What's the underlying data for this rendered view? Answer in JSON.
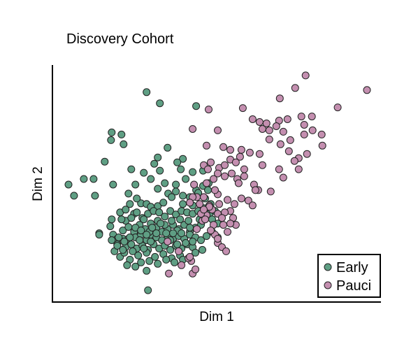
{
  "chart_data": {
    "type": "scatter",
    "title": "Discovery Cohort",
    "xlabel": "Dim 1",
    "ylabel": "Dim 2",
    "xlim": [
      0,
      470
    ],
    "ylim": [
      0,
      340
    ],
    "grid": false,
    "ticks_shown": false,
    "legend_placement": "bottom-right",
    "series": [
      {
        "name": "Early",
        "color": "#5f9f84",
        "points": [
          [
            134,
            301
          ],
          [
            153,
            285
          ],
          [
            205,
            281
          ],
          [
            84,
            243
          ],
          [
            98,
            240
          ],
          [
            83,
            232
          ],
          [
            101,
            226
          ],
          [
            74,
            201
          ],
          [
            112,
            190
          ],
          [
            145,
            198
          ],
          [
            164,
            221
          ],
          [
            186,
            205
          ],
          [
            150,
            207
          ],
          [
            178,
            200
          ],
          [
            183,
            190
          ],
          [
            200,
            186
          ],
          [
            215,
            188
          ],
          [
            153,
            188
          ],
          [
            130,
            185
          ],
          [
            22,
            168
          ],
          [
            30,
            152
          ],
          [
            44,
            176
          ],
          [
            58,
            176
          ],
          [
            60,
            152
          ],
          [
            86,
            168
          ],
          [
            118,
            168
          ],
          [
            140,
            176
          ],
          [
            160,
            170
          ],
          [
            176,
            168
          ],
          [
            190,
            176
          ],
          [
            205,
            160
          ],
          [
            215,
            166
          ],
          [
            223,
            170
          ],
          [
            108,
            155
          ],
          [
            110,
            140
          ],
          [
            116,
            126
          ],
          [
            126,
            141
          ],
          [
            134,
            140
          ],
          [
            140,
            136
          ],
          [
            150,
            137
          ],
          [
            158,
            142
          ],
          [
            165,
            155
          ],
          [
            176,
            158
          ],
          [
            186,
            152
          ],
          [
            196,
            150
          ],
          [
            208,
            156
          ],
          [
            222,
            160
          ],
          [
            96,
            128
          ],
          [
            104,
            116
          ],
          [
            112,
            120
          ],
          [
            120,
            128
          ],
          [
            128,
            120
          ],
          [
            136,
            126
          ],
          [
            144,
            130
          ],
          [
            152,
            128
          ],
          [
            160,
            122
          ],
          [
            168,
            130
          ],
          [
            176,
            125
          ],
          [
            184,
            130
          ],
          [
            192,
            128
          ],
          [
            200,
            126
          ],
          [
            208,
            130
          ],
          [
            216,
            134
          ],
          [
            224,
            126
          ],
          [
            232,
            130
          ],
          [
            100,
            102
          ],
          [
            108,
            107
          ],
          [
            116,
            100
          ],
          [
            124,
            110
          ],
          [
            132,
            104
          ],
          [
            140,
            112
          ],
          [
            148,
            106
          ],
          [
            156,
            100
          ],
          [
            164,
            104
          ],
          [
            172,
            110
          ],
          [
            180,
            104
          ],
          [
            188,
            110
          ],
          [
            196,
            100
          ],
          [
            204,
            106
          ],
          [
            212,
            110
          ],
          [
            66,
            98
          ],
          [
            82,
            108
          ],
          [
            86,
            96
          ],
          [
            92,
            90
          ],
          [
            100,
            90
          ],
          [
            108,
            90
          ],
          [
            118,
            92
          ],
          [
            126,
            96
          ],
          [
            134,
            88
          ],
          [
            140,
            96
          ],
          [
            148,
            92
          ],
          [
            156,
            88
          ],
          [
            164,
            94
          ],
          [
            172,
            90
          ],
          [
            180,
            94
          ],
          [
            188,
            90
          ],
          [
            196,
            96
          ],
          [
            204,
            92
          ],
          [
            212,
            88
          ],
          [
            220,
            94
          ],
          [
            228,
            100
          ],
          [
            236,
            92
          ],
          [
            104,
            78
          ],
          [
            112,
            82
          ],
          [
            120,
            76
          ],
          [
            128,
            80
          ],
          [
            136,
            74
          ],
          [
            144,
            82
          ],
          [
            152,
            76
          ],
          [
            160,
            80
          ],
          [
            168,
            74
          ],
          [
            176,
            80
          ],
          [
            184,
            76
          ],
          [
            192,
            82
          ],
          [
            200,
            78
          ],
          [
            66,
            96
          ],
          [
            84,
            88
          ],
          [
            92,
            82
          ],
          [
            122,
            66
          ],
          [
            134,
            70
          ],
          [
            146,
            64
          ],
          [
            158,
            68
          ],
          [
            170,
            62
          ],
          [
            182,
            66
          ],
          [
            194,
            62
          ],
          [
            204,
            70
          ],
          [
            214,
            74
          ],
          [
            110,
            60
          ],
          [
            96,
            64
          ],
          [
            88,
            72
          ],
          [
            102,
            70
          ],
          [
            114,
            72
          ],
          [
            126,
            56
          ],
          [
            138,
            58
          ],
          [
            150,
            54
          ],
          [
            162,
            60
          ],
          [
            174,
            56
          ],
          [
            186,
            60
          ],
          [
            106,
            52
          ],
          [
            118,
            50
          ],
          [
            134,
            44
          ],
          [
            94,
            92
          ],
          [
            102,
            86
          ],
          [
            150,
            116
          ],
          [
            160,
            110
          ],
          [
            170,
            116
          ],
          [
            178,
            102
          ],
          [
            190,
            84
          ],
          [
            200,
            86
          ],
          [
            138,
            100
          ],
          [
            148,
            98
          ],
          [
            118,
            106
          ],
          [
            126,
            102
          ],
          [
            134,
            96
          ],
          [
            142,
            106
          ],
          [
            154,
            112
          ],
          [
            162,
            98
          ],
          [
            172,
            98
          ],
          [
            182,
            118
          ],
          [
            194,
            116
          ],
          [
            210,
            118
          ],
          [
            218,
            122
          ],
          [
            228,
            118
          ],
          [
            236,
            112
          ],
          [
            178,
            82
          ],
          [
            130,
            118
          ],
          [
            140,
            86
          ],
          [
            98,
            118
          ],
          [
            136,
            16
          ],
          [
            92,
            80
          ],
          [
            84,
            118
          ],
          [
            104,
            132
          ],
          [
            120,
            148
          ],
          [
            150,
            162
          ],
          [
            170,
            150
          ],
          [
            200,
            138
          ],
          [
            218,
            148
          ],
          [
            226,
            140
          ],
          [
            186,
            140
          ],
          [
            196,
            106
          ],
          [
            100,
            74
          ],
          [
            110,
            92
          ],
          [
            124,
            88
          ],
          [
            168,
            88
          ],
          [
            184,
            98
          ],
          [
            130,
            76
          ]
        ]
      },
      {
        "name": "Pauci",
        "color": "#c48fb0",
        "points": [
          [
            362,
            325
          ],
          [
            347,
            307
          ],
          [
            450,
            304
          ],
          [
            325,
            292
          ],
          [
            408,
            279
          ],
          [
            272,
            278
          ],
          [
            223,
            276
          ],
          [
            200,
            248
          ],
          [
            286,
            262
          ],
          [
            296,
            258
          ],
          [
            306,
            256
          ],
          [
            324,
            260
          ],
          [
            336,
            262
          ],
          [
            356,
            266
          ],
          [
            371,
            266
          ],
          [
            300,
            248
          ],
          [
            310,
            246
          ],
          [
            320,
            252
          ],
          [
            360,
            254
          ],
          [
            372,
            246
          ],
          [
            236,
            246
          ],
          [
            330,
            244
          ],
          [
            385,
            240
          ],
          [
            310,
            233
          ],
          [
            326,
            226
          ],
          [
            340,
            232
          ],
          [
            360,
            240
          ],
          [
            386,
            224
          ],
          [
            220,
            224
          ],
          [
            244,
            222
          ],
          [
            254,
            218
          ],
          [
            270,
            218
          ],
          [
            296,
            212
          ],
          [
            338,
            216
          ],
          [
            352,
            206
          ],
          [
            364,
            212
          ],
          [
            216,
            196
          ],
          [
            226,
            200
          ],
          [
            238,
            192
          ],
          [
            246,
            196
          ],
          [
            254,
            204
          ],
          [
            262,
            200
          ],
          [
            268,
            208
          ],
          [
            282,
            214
          ],
          [
            324,
            190
          ],
          [
            330,
            178
          ],
          [
            346,
            202
          ],
          [
            352,
            190
          ],
          [
            288,
            168
          ],
          [
            294,
            160
          ],
          [
            312,
            158
          ],
          [
            206,
            150
          ],
          [
            220,
            170
          ],
          [
            230,
            176
          ],
          [
            236,
            184
          ],
          [
            246,
            180
          ],
          [
            256,
            184
          ],
          [
            264,
            176
          ],
          [
            274,
            180
          ],
          [
            290,
            160
          ],
          [
            280,
            145
          ],
          [
            286,
            138
          ],
          [
            270,
            148
          ],
          [
            260,
            140
          ],
          [
            254,
            130
          ],
          [
            246,
            128
          ],
          [
            238,
            140
          ],
          [
            228,
            132
          ],
          [
            220,
            124
          ],
          [
            214,
            116
          ],
          [
            230,
            110
          ],
          [
            244,
            110
          ],
          [
            250,
            100
          ],
          [
            258,
            120
          ],
          [
            262,
            110
          ],
          [
            232,
            96
          ],
          [
            236,
            84
          ],
          [
            242,
            78
          ],
          [
            248,
            72
          ],
          [
            236,
            90
          ],
          [
            226,
            102
          ],
          [
            224,
            138
          ],
          [
            212,
            126
          ],
          [
            200,
            150
          ],
          [
            196,
            142
          ],
          [
            206,
            104
          ],
          [
            198,
            58
          ],
          [
            180,
            72
          ],
          [
            164,
            86
          ],
          [
            194,
            62
          ],
          [
            200,
            40
          ],
          [
            204,
            46
          ],
          [
            196,
            64
          ],
          [
            184,
            52
          ],
          [
            166,
            40
          ],
          [
            224,
            136
          ],
          [
            216,
            132
          ],
          [
            210,
            140
          ],
          [
            236,
            154
          ],
          [
            250,
            146
          ],
          [
            232,
            160
          ],
          [
            218,
            118
          ],
          [
            254,
            112
          ],
          [
            216,
            150
          ],
          [
            300,
            196
          ],
          [
            202,
            168
          ],
          [
            222,
            190
          ],
          [
            266,
            170
          ],
          [
            274,
            190
          ],
          [
            236,
            126
          ],
          [
            242,
            120
          ]
        ]
      }
    ]
  }
}
